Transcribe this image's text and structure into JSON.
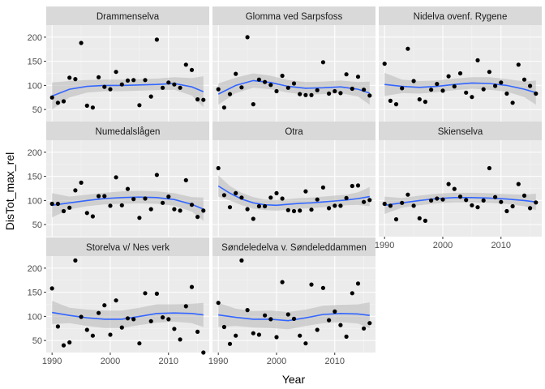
{
  "chart_data": {
    "type": "scatter",
    "xlabel": "Year",
    "ylabel": "DisTot_max_rel",
    "xlim": [
      1989,
      2017
    ],
    "ylim": [
      25,
      225
    ],
    "x_ticks": [
      1990,
      2000,
      2010
    ],
    "y_ticks": [
      50,
      100,
      150,
      200
    ],
    "grid": true,
    "colors": {
      "panel_bg": "#ebebeb",
      "strip_bg": "#d9d9d9",
      "grid": "#ffffff",
      "points": "#000000",
      "smooth_line": "#3366ff",
      "ribbon": "#bdbdbd"
    },
    "panels": [
      {
        "name": "Drammenselva",
        "x": [
          1990,
          1991,
          1992,
          1993,
          1994,
          1995,
          1996,
          1997,
          1998,
          1999,
          2000,
          2001,
          2002,
          2003,
          2004,
          2005,
          2006,
          2007,
          2008,
          2009,
          2010,
          2011,
          2012,
          2013,
          2014,
          2015,
          2016
        ],
        "y": [
          75,
          64,
          67,
          116,
          113,
          188,
          58,
          54,
          117,
          97,
          92,
          128,
          102,
          110,
          111,
          59,
          111,
          77,
          195,
          95,
          106,
          102,
          95,
          143,
          132,
          71,
          70
        ],
        "smooth": {
          "x": [
            1990,
            1993,
            1996,
            1999,
            2002,
            2005,
            2008,
            2011,
            2014,
            2016
          ],
          "y": [
            78,
            92,
            98,
            100,
            100,
            101,
            102,
            104,
            97,
            87
          ],
          "lower": [
            50,
            75,
            85,
            88,
            88,
            89,
            90,
            91,
            79,
            55
          ],
          "upper": [
            106,
            109,
            111,
            112,
            112,
            113,
            114,
            117,
            115,
            119
          ]
        }
      },
      {
        "name": "Glomma ved Sarpsfoss",
        "x": [
          1990,
          1991,
          1992,
          1993,
          1994,
          1995,
          1996,
          1997,
          1998,
          1999,
          2000,
          2001,
          2002,
          2003,
          2004,
          2005,
          2006,
          2007,
          2008,
          2009,
          2010,
          2011,
          2012,
          2013,
          2014,
          2015,
          2016
        ],
        "y": [
          92,
          54,
          82,
          124,
          96,
          200,
          61,
          112,
          107,
          101,
          88,
          120,
          95,
          104,
          82,
          80,
          80,
          90,
          148,
          83,
          88,
          84,
          123,
          93,
          118,
          91,
          79
        ],
        "smooth": {
          "x": [
            1990,
            1993,
            1996,
            1999,
            2002,
            2005,
            2008,
            2011,
            2014,
            2016
          ],
          "y": [
            82,
            100,
            110,
            106,
            98,
            94,
            95,
            97,
            92,
            84
          ],
          "lower": [
            60,
            84,
            95,
            92,
            85,
            81,
            82,
            84,
            77,
            60
          ],
          "upper": [
            104,
            116,
            125,
            120,
            111,
            107,
            108,
            110,
            107,
            108
          ]
        }
      },
      {
        "name": "Nidelva ovenf. Rygene",
        "x": [
          1990,
          1991,
          1992,
          1993,
          1994,
          1995,
          1996,
          1997,
          1998,
          1999,
          2000,
          2001,
          2002,
          2003,
          2004,
          2005,
          2006,
          2007,
          2008,
          2009,
          2010,
          2011,
          2012,
          2013,
          2014,
          2015,
          2016
        ],
        "y": [
          145,
          68,
          61,
          94,
          176,
          109,
          71,
          66,
          91,
          103,
          89,
          119,
          98,
          125,
          85,
          76,
          152,
          92,
          128,
          99,
          106,
          83,
          64,
          143,
          112,
          99,
          83
        ],
        "smooth": {
          "x": [
            1990,
            1993,
            1996,
            1999,
            2002,
            2005,
            2008,
            2011,
            2014,
            2016
          ],
          "y": [
            102,
            98,
            96,
            98,
            102,
            105,
            104,
            100,
            92,
            85
          ],
          "lower": [
            78,
            84,
            83,
            86,
            90,
            93,
            91,
            87,
            76,
            60
          ],
          "upper": [
            126,
            112,
            109,
            110,
            114,
            117,
            117,
            113,
            108,
            110
          ]
        }
      },
      {
        "name": "Numedalslågen",
        "x": [
          1990,
          1991,
          1992,
          1993,
          1994,
          1995,
          1996,
          1997,
          1998,
          1999,
          2000,
          2001,
          2002,
          2003,
          2004,
          2005,
          2006,
          2007,
          2008,
          2009,
          2010,
          2011,
          2012,
          2013,
          2014,
          2015,
          2016
        ],
        "y": [
          93,
          93,
          78,
          85,
          121,
          137,
          74,
          67,
          109,
          109,
          89,
          148,
          90,
          124,
          103,
          64,
          104,
          82,
          153,
          95,
          108,
          82,
          79,
          142,
          91,
          66,
          79
        ],
        "smooth": {
          "x": [
            1990,
            1993,
            1996,
            1999,
            2002,
            2005,
            2008,
            2011,
            2014,
            2016
          ],
          "y": [
            90,
            95,
            100,
            104,
            106,
            107,
            106,
            102,
            92,
            82
          ],
          "lower": [
            65,
            82,
            88,
            92,
            93,
            94,
            93,
            89,
            77,
            58
          ],
          "upper": [
            115,
            108,
            112,
            116,
            119,
            120,
            119,
            115,
            107,
            106
          ]
        }
      },
      {
        "name": "Otra",
        "x": [
          1990,
          1991,
          1992,
          1993,
          1994,
          1995,
          1996,
          1997,
          1998,
          1999,
          2000,
          2001,
          2002,
          2003,
          2004,
          2005,
          2006,
          2007,
          2008,
          2009,
          2010,
          2011,
          2012,
          2013,
          2014,
          2015,
          2016
        ],
        "y": [
          167,
          111,
          86,
          115,
          106,
          82,
          62,
          88,
          88,
          106,
          115,
          104,
          80,
          78,
          79,
          119,
          81,
          102,
          127,
          84,
          89,
          89,
          105,
          130,
          131,
          97,
          101
        ],
        "smooth": {
          "x": [
            1990,
            1992,
            1994,
            1996,
            1998,
            2000,
            2002,
            2004,
            2006,
            2008,
            2010,
            2012,
            2014,
            2016
          ],
          "y": [
            130,
            115,
            103,
            95,
            91,
            90,
            92,
            94,
            95,
            97,
            99,
            101,
            104,
            108
          ],
          "lower": [
            108,
            100,
            90,
            83,
            80,
            79,
            81,
            83,
            84,
            86,
            88,
            90,
            91,
            88
          ],
          "upper": [
            152,
            130,
            116,
            107,
            102,
            101,
            103,
            105,
            106,
            108,
            110,
            112,
            117,
            128
          ]
        }
      },
      {
        "name": "Skienselva",
        "x": [
          1990,
          1991,
          1992,
          1993,
          1994,
          1995,
          1996,
          1997,
          1998,
          1999,
          2000,
          2001,
          2002,
          2003,
          2004,
          2005,
          2006,
          2007,
          2008,
          2009,
          2010,
          2011,
          2012,
          2013,
          2014,
          2015,
          2016
        ],
        "y": [
          93,
          89,
          61,
          95,
          112,
          89,
          63,
          58,
          100,
          104,
          102,
          134,
          124,
          108,
          101,
          90,
          86,
          100,
          167,
          107,
          97,
          78,
          88,
          134,
          110,
          84,
          96
        ],
        "smooth": {
          "x": [
            1990,
            1993,
            1996,
            1999,
            2002,
            2005,
            2008,
            2011,
            2014,
            2016
          ],
          "y": [
            90,
            95,
            100,
            104,
            106,
            106,
            105,
            103,
            100,
            97
          ],
          "lower": [
            72,
            85,
            90,
            94,
            96,
            96,
            95,
            93,
            88,
            80
          ],
          "upper": [
            108,
            105,
            110,
            114,
            116,
            116,
            115,
            113,
            112,
            114
          ]
        }
      },
      {
        "name": "Storelva v/ Nes verk",
        "x": [
          1990,
          1991,
          1992,
          1993,
          1994,
          1995,
          1996,
          1997,
          1998,
          1999,
          2000,
          2001,
          2002,
          2003,
          2004,
          2005,
          2006,
          2007,
          2008,
          2009,
          2010,
          2011,
          2012,
          2013,
          2014,
          2015,
          2016
        ],
        "y": [
          158,
          79,
          40,
          46,
          216,
          99,
          72,
          60,
          107,
          123,
          62,
          133,
          77,
          96,
          94,
          44,
          148,
          90,
          147,
          98,
          94,
          74,
          52,
          121,
          161,
          68,
          10
        ],
        "smooth": {
          "x": [
            1990,
            1993,
            1996,
            1999,
            2002,
            2005,
            2008,
            2011,
            2014,
            2016
          ],
          "y": [
            108,
            102,
            97,
            94,
            94,
            100,
            106,
            107,
            106,
            103
          ],
          "lower": [
            84,
            86,
            80,
            76,
            76,
            82,
            87,
            89,
            86,
            78
          ],
          "upper": [
            132,
            118,
            114,
            112,
            112,
            118,
            125,
            125,
            126,
            128
          ]
        }
      },
      {
        "name": "Søndeledelva v. Søndeleddammen",
        "x": [
          1990,
          1991,
          1992,
          1993,
          1994,
          1995,
          1996,
          1997,
          1998,
          1999,
          2000,
          2001,
          2002,
          2003,
          2004,
          2005,
          2006,
          2007,
          2008,
          2009,
          2010,
          2011,
          2012,
          2013,
          2014,
          2015,
          2016
        ],
        "y": [
          128,
          78,
          43,
          60,
          216,
          113,
          65,
          62,
          102,
          94,
          57,
          171,
          104,
          95,
          60,
          44,
          166,
          72,
          159,
          92,
          110,
          82,
          58,
          148,
          168,
          75,
          86
        ],
        "smooth": {
          "x": [
            1990,
            1993,
            1996,
            1999,
            2002,
            2005,
            2008,
            2011,
            2014,
            2016
          ],
          "y": [
            103,
            98,
            94,
            94,
            91,
            97,
            104,
            106,
            105,
            102
          ],
          "lower": [
            78,
            80,
            77,
            76,
            73,
            80,
            86,
            88,
            85,
            75
          ],
          "upper": [
            128,
            116,
            111,
            112,
            109,
            114,
            122,
            124,
            125,
            129
          ]
        }
      }
    ]
  }
}
